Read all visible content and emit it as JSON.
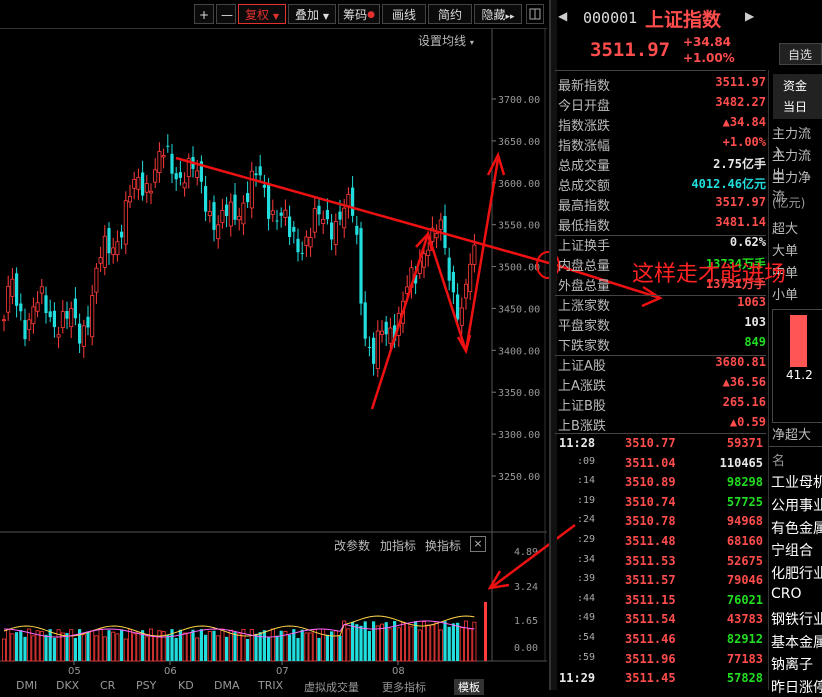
{
  "toolbar": {
    "plus": "+",
    "minus": "—",
    "fuquan": "复权",
    "diejia": "叠加",
    "chouma": "筹码",
    "huaxian": "画线",
    "jianyue": "简约",
    "yincang": "隐藏",
    "more": "▸▸"
  },
  "chart": {
    "settings_label": "设置均线",
    "price_ticks": [
      "3700.00",
      "3650.00",
      "3600.00",
      "3550.00",
      "3500.00",
      "3450.00",
      "3400.00",
      "3350.00",
      "3300.00",
      "3250.00"
    ],
    "volume_ticks": [
      "4.89",
      "3.24",
      "1.65",
      "0.00"
    ],
    "month_labels": [
      "05",
      "06",
      "07",
      "08"
    ],
    "sub_buttons": {
      "params": "改参数",
      "add": "加指标",
      "swap": "换指标",
      "close": "×"
    },
    "annotation": "这样走才能进场",
    "bottom_tabs": [
      "DMI",
      "DKX",
      "CR",
      "PSY",
      "KD",
      "DMA",
      "TRIX",
      "虚拟成交量",
      "更多指标",
      "模板"
    ]
  },
  "quote": {
    "code": "000001",
    "name": "上证指数",
    "price": "3511.97",
    "change": "+34.84",
    "change_pct": "+1.00%",
    "zixuan": "自选"
  },
  "stats": [
    {
      "k": "最新指数",
      "v": "3511.97",
      "c": "red"
    },
    {
      "k": "今日开盘",
      "v": "3482.27",
      "c": "red"
    },
    {
      "k": "指数涨跌",
      "v": "▲34.84",
      "c": "red"
    },
    {
      "k": "指数涨幅",
      "v": "+1.00%",
      "c": "red"
    },
    {
      "k": "总成交量",
      "v": "2.75亿手",
      "c": "white"
    },
    {
      "k": "总成交额",
      "v": "4012.46亿元",
      "c": "cyan"
    },
    {
      "k": "最高指数",
      "v": "3517.97",
      "c": "red"
    },
    {
      "k": "最低指数",
      "v": "3481.14",
      "c": "red"
    },
    {
      "k": "上证换手",
      "v": "0.62%",
      "c": "white"
    },
    {
      "k": "内盘总量",
      "v": "13734万手",
      "c": "green"
    },
    {
      "k": "外盘总量",
      "v": "13731万手",
      "c": "red"
    },
    {
      "k": "上涨家数",
      "v": "1063",
      "c": "red"
    },
    {
      "k": "平盘家数",
      "v": "103",
      "c": "white"
    },
    {
      "k": "下跌家数",
      "v": "849",
      "c": "green"
    },
    {
      "k": "上证A股",
      "v": "3680.81",
      "c": "red"
    },
    {
      "k": "上A涨跌",
      "v": "▲36.56",
      "c": "red"
    },
    {
      "k": "上证B股",
      "v": "265.16",
      "c": "red"
    },
    {
      "k": "上B涨跌",
      "v": "▲0.59",
      "c": "red"
    }
  ],
  "ticks": [
    {
      "t": "11:28",
      "p": "3510.77",
      "vol": "59371",
      "vc": "red"
    },
    {
      "t": ":09",
      "p": "3511.04",
      "vol": "110465",
      "vc": "white"
    },
    {
      "t": ":14",
      "p": "3510.89",
      "vol": "98298",
      "vc": "green"
    },
    {
      "t": ":19",
      "p": "3510.74",
      "vol": "57725",
      "vc": "green"
    },
    {
      "t": ":24",
      "p": "3510.78",
      "vol": "94968",
      "vc": "red"
    },
    {
      "t": ":29",
      "p": "3511.48",
      "vol": "68160",
      "vc": "red"
    },
    {
      "t": ":34",
      "p": "3511.53",
      "vol": "52675",
      "vc": "red"
    },
    {
      "t": ":39",
      "p": "3511.57",
      "vol": "79046",
      "vc": "red"
    },
    {
      "t": ":44",
      "p": "3511.15",
      "vol": "76021",
      "vc": "green"
    },
    {
      "t": ":49",
      "p": "3511.54",
      "vol": "43783",
      "vc": "red"
    },
    {
      "t": ":54",
      "p": "3511.46",
      "vol": "82912",
      "vc": "green"
    },
    {
      "t": ":59",
      "p": "3511.96",
      "vol": "77183",
      "vc": "red"
    },
    {
      "t": "11:29",
      "p": "3511.45",
      "vol": "57828",
      "vc": "green"
    }
  ],
  "side": {
    "zijin": "资金",
    "dangri": "当日",
    "liuru": "主力流入",
    "liuchu": "主力流出",
    "jinge": "主力净流",
    "unit": "(亿元)",
    "chaoda": "超大",
    "dadan": "大单",
    "zhongdan": "中单",
    "xiaodan": "小单",
    "bar_value": "41.2",
    "jinge_da": "净超大",
    "ming": "名",
    "sectors": [
      "工业母机",
      "公用事业",
      "有色金属",
      "宁组合",
      "化肥行业",
      "CRO",
      "钢铁行业",
      "基本金属",
      "钠离子",
      "昨日涨停"
    ]
  }
}
